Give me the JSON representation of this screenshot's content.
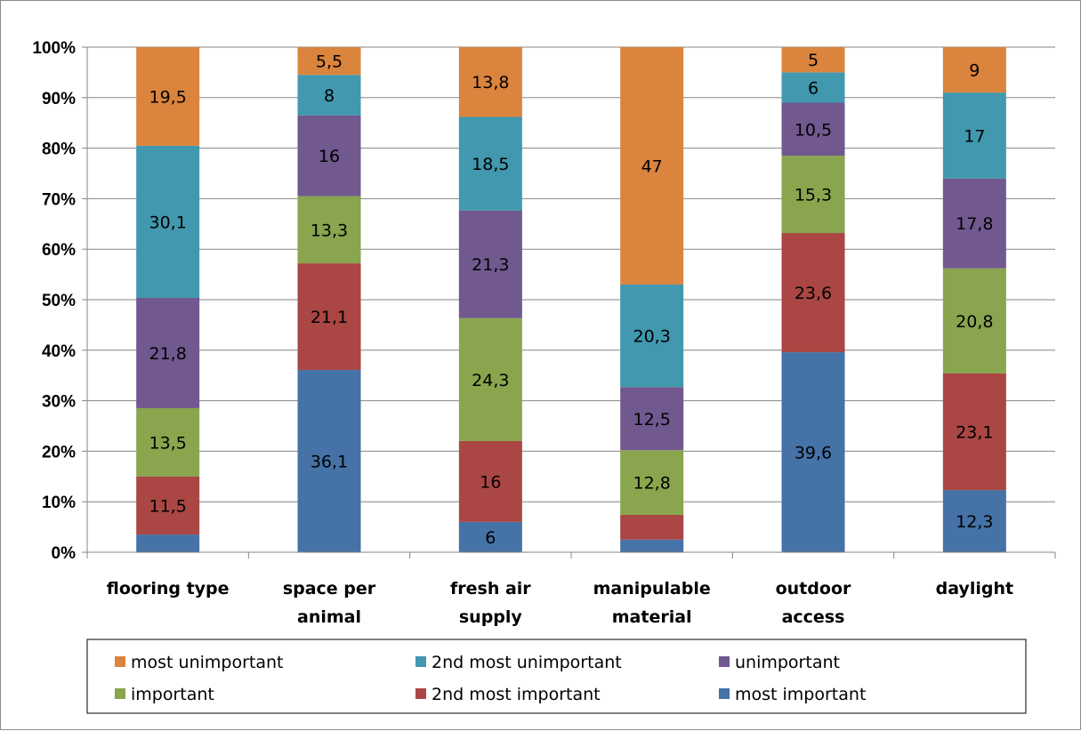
{
  "chart_data": {
    "type": "bar",
    "stacked": true,
    "percent_stacked": true,
    "categories": [
      [
        "flooring type"
      ],
      [
        "space per",
        "animal"
      ],
      [
        "fresh air",
        "supply"
      ],
      [
        "manipulable",
        "material"
      ],
      [
        "outdoor",
        "access"
      ],
      [
        "daylight"
      ]
    ],
    "series": [
      {
        "name": "most important",
        "color": "#4572a7",
        "values": [
          3.5,
          36.1,
          6,
          2.5,
          39.6,
          12.3
        ],
        "labels": [
          "",
          "36,1",
          "6",
          "",
          "39,6",
          "12,3"
        ]
      },
      {
        "name": "2nd most important",
        "color": "#aa4643",
        "values": [
          11.5,
          21.1,
          16,
          4.9,
          23.6,
          23.1
        ],
        "labels": [
          "11,5",
          "21,1",
          "16",
          "",
          "23,6",
          "23,1"
        ]
      },
      {
        "name": "important",
        "color": "#89a54e",
        "values": [
          13.5,
          13.3,
          24.3,
          12.8,
          15.3,
          20.8
        ],
        "labels": [
          "13,5",
          "13,3",
          "24,3",
          "12,8",
          "15,3",
          "20,8"
        ]
      },
      {
        "name": "unimportant",
        "color": "#71588f",
        "values": [
          21.8,
          16,
          21.3,
          12.5,
          10.5,
          17.8
        ],
        "labels": [
          "21,8",
          "16",
          "21,3",
          "12,5",
          "10,5",
          "17,8"
        ]
      },
      {
        "name": "2nd most unimportant",
        "color": "#4198af",
        "values": [
          30.1,
          8,
          18.5,
          20.3,
          6,
          17
        ],
        "labels": [
          "30,1",
          "8",
          "18,5",
          "20,3",
          "6",
          "17"
        ]
      },
      {
        "name": "most unimportant",
        "color": "#db843d",
        "values": [
          19.5,
          5.5,
          13.8,
          47,
          5,
          9
        ],
        "labels": [
          "19,5",
          "5,5",
          "13,8",
          "47",
          "5",
          "9"
        ]
      }
    ],
    "yticks": [
      "0%",
      "10%",
      "20%",
      "30%",
      "40%",
      "50%",
      "60%",
      "70%",
      "80%",
      "90%",
      "100%"
    ],
    "ylim": [
      0,
      100
    ],
    "grid": true,
    "legend_order": [
      "most unimportant",
      "2nd most unimportant",
      "unimportant",
      "important",
      "2nd most important",
      "most important"
    ],
    "legend_position": "bottom"
  }
}
